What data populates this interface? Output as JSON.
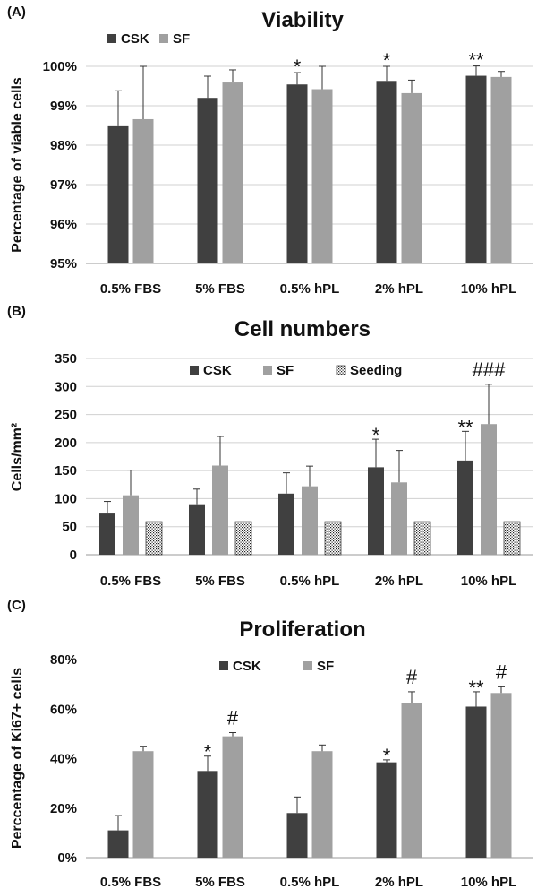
{
  "chart_data": [
    {
      "panel_label": "(A)",
      "type": "bar",
      "title": "Viability",
      "ylabel": "Percentage of viable cells",
      "categories": [
        "0.5% FBS",
        "5% FBS",
        "0.5% hPL",
        "2% hPL",
        "10% hPL"
      ],
      "ylim": [
        95,
        100
      ],
      "yticks": [
        95,
        96,
        97,
        98,
        99,
        100
      ],
      "ytick_labels": [
        "95%",
        "96%",
        "97%",
        "98%",
        "99%",
        "100%"
      ],
      "grid": true,
      "legend_position": "top-left",
      "series": [
        {
          "name": "CSK",
          "color": "#404040",
          "values": [
            98.48,
            99.2,
            99.54,
            99.63,
            99.76
          ],
          "errors": [
            0.9,
            0.55,
            0.3,
            0.37,
            0.25
          ],
          "annotations": [
            "",
            "",
            "*",
            "*",
            "**"
          ]
        },
        {
          "name": "SF",
          "color": "#a0a0a0",
          "values": [
            98.66,
            99.59,
            99.42,
            99.32,
            99.73
          ],
          "errors": [
            1.34,
            0.32,
            0.58,
            0.33,
            0.14
          ],
          "annotations": [
            "",
            "",
            "",
            "",
            ""
          ]
        }
      ]
    },
    {
      "panel_label": "(B)",
      "type": "bar",
      "title": "Cell numbers",
      "ylabel": "Cells/mm²",
      "categories": [
        "0.5% FBS",
        "5% FBS",
        "0.5% hPL",
        "2% hPL",
        "10% hPL"
      ],
      "ylim": [
        0,
        350
      ],
      "yticks": [
        0,
        50,
        100,
        150,
        200,
        250,
        300,
        350
      ],
      "ytick_labels": [
        "0",
        "50",
        "100",
        "150",
        "200",
        "250",
        "300",
        "350"
      ],
      "grid": true,
      "legend_position": "top-center",
      "series": [
        {
          "name": "CSK",
          "color": "#404040",
          "values": [
            75,
            90,
            109,
            156,
            168
          ],
          "errors": [
            20,
            27,
            37,
            50,
            52
          ],
          "annotations": [
            "",
            "",
            "",
            "*",
            "**"
          ]
        },
        {
          "name": "SF",
          "color": "#a0a0a0",
          "values": [
            106,
            159,
            122,
            129,
            233
          ],
          "errors": [
            45,
            52,
            36,
            57,
            71
          ],
          "annotations": [
            "",
            "",
            "",
            "",
            "###"
          ]
        },
        {
          "name": "Seeding",
          "color": "#ffffff",
          "pattern": "dots",
          "values": [
            59,
            59,
            59,
            59,
            59
          ],
          "errors": [
            0,
            0,
            0,
            0,
            0
          ],
          "annotations": [
            "",
            "",
            "",
            "",
            ""
          ]
        }
      ]
    },
    {
      "panel_label": "(C)",
      "type": "bar",
      "title": "Proliferation",
      "ylabel": "Perccentage of Ki67+ cells",
      "categories": [
        "0.5% FBS",
        "5% FBS",
        "0.5% hPL",
        "2% hPL",
        "10% hPL"
      ],
      "ylim": [
        0,
        80
      ],
      "yticks": [
        0,
        20,
        40,
        60,
        80
      ],
      "ytick_labels": [
        "0%",
        "20%",
        "40%",
        "60%",
        "80%"
      ],
      "grid": false,
      "legend_position": "top-center",
      "series": [
        {
          "name": "CSK",
          "color": "#404040",
          "values": [
            11,
            35,
            18,
            38.5,
            61
          ],
          "errors": [
            6,
            6,
            6.5,
            1,
            6
          ],
          "annotations": [
            "",
            "*",
            "",
            "*",
            "**"
          ]
        },
        {
          "name": "SF",
          "color": "#a0a0a0",
          "values": [
            43,
            49,
            43,
            62.5,
            66.5
          ],
          "errors": [
            2,
            1.5,
            2.5,
            4.5,
            2.5
          ],
          "annotations": [
            "",
            "#",
            "",
            "#",
            "#"
          ]
        }
      ]
    }
  ]
}
